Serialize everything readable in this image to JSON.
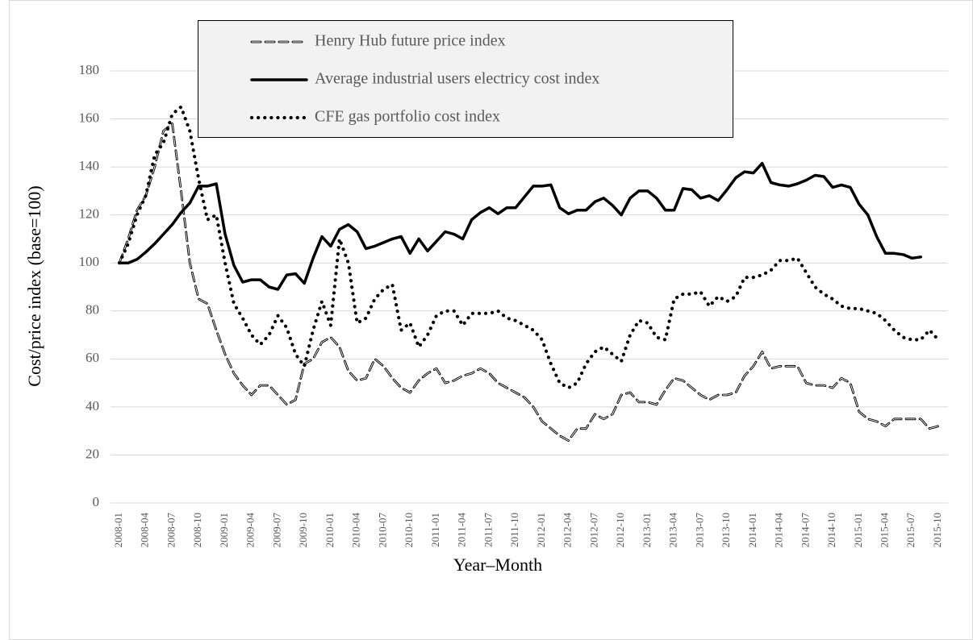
{
  "chart_data": {
    "type": "line",
    "x_label": "Year–Month",
    "y_label": "Cost/price  index (base=100)",
    "categories": [
      "2008-01",
      null,
      null,
      "2008-04",
      null,
      null,
      "2008-07",
      null,
      null,
      "2008-10",
      null,
      null,
      "2009-01",
      null,
      null,
      "2009-04",
      null,
      null,
      "2009-07",
      null,
      null,
      "2009-10",
      null,
      null,
      "2010-01",
      null,
      null,
      "2010-04",
      null,
      null,
      "2010-07",
      null,
      null,
      "2010-10",
      null,
      null,
      "2011-01",
      null,
      null,
      "2011-04",
      null,
      null,
      "2011-07",
      null,
      null,
      "2011-10",
      null,
      null,
      "2012-01",
      null,
      null,
      "2012-04",
      null,
      null,
      "2012-07",
      null,
      null,
      "2012-10",
      null,
      null,
      "2013-01",
      null,
      null,
      "2013-04",
      null,
      null,
      "2013-07",
      null,
      null,
      "2013-10",
      null,
      null,
      "2014-01",
      null,
      null,
      "2014-04",
      null,
      null,
      "2014-07",
      null,
      null,
      "2014-10",
      null,
      null,
      "2015-01",
      null,
      null,
      "2015-04",
      null,
      null,
      "2015-07",
      null,
      null,
      "2015-10"
    ],
    "series": [
      {
        "name": "Henry Hub future price index",
        "color": "#000000",
        "dash": "dashed",
        "values": [
          100,
          110,
          122,
          128,
          140,
          155,
          158,
          130,
          100,
          85,
          83,
          72,
          62,
          54,
          49,
          45,
          49,
          49,
          45,
          41,
          43,
          58,
          60,
          67,
          69,
          65,
          55,
          51,
          52,
          60,
          57,
          52,
          48,
          46,
          51,
          54,
          56,
          50,
          51,
          53,
          54,
          56,
          54,
          50,
          48,
          46,
          44,
          40,
          34,
          31,
          28,
          26,
          31,
          31,
          37,
          35,
          37,
          45,
          46,
          42,
          42,
          41,
          47,
          52,
          51,
          48,
          45,
          43,
          45,
          45,
          46,
          53,
          57,
          63,
          56,
          57,
          57,
          57,
          50,
          49,
          49,
          48,
          52,
          50,
          38,
          35,
          34,
          32,
          35,
          35,
          35,
          35,
          31,
          32
        ]
      },
      {
        "name": "Average industrial users electricy cost  index",
        "color": "#000000",
        "dash": "solid",
        "values": [
          100,
          100,
          101.5,
          104.5,
          108,
          112,
          116,
          121,
          125,
          132,
          132,
          133,
          112,
          99,
          92,
          93,
          93,
          90,
          89,
          95,
          95.5,
          91.5,
          102,
          111,
          107,
          114,
          116,
          113,
          106,
          107,
          108.5,
          110,
          111,
          104,
          110,
          105,
          109,
          113,
          112,
          110,
          118,
          121,
          123,
          120.5,
          123,
          123,
          127.5,
          132,
          132,
          132.5,
          123,
          120.5,
          122,
          122,
          125.5,
          127,
          124,
          120,
          127,
          130,
          130,
          127,
          122,
          122,
          131,
          130.5,
          127,
          128,
          126,
          130.5,
          135.5,
          138,
          137.5,
          141.5,
          133.5,
          132.5,
          132,
          133,
          134.5,
          136.5,
          136,
          131.5,
          132.5,
          131.5,
          124.5,
          120,
          111,
          104,
          104,
          103.5,
          102,
          102.5,
          null,
          null
        ]
      },
      {
        "name": "CFE gas portfolio cost index",
        "color": "#000000",
        "dash": "dotted",
        "values": [
          100,
          108,
          120,
          128,
          145,
          150,
          162,
          165,
          155,
          135,
          118,
          120,
          100,
          83,
          77,
          70,
          66,
          70,
          78,
          73,
          62,
          57,
          72,
          84,
          74,
          110,
          100,
          75,
          77,
          85,
          89,
          91,
          72,
          75,
          65,
          70,
          78,
          80,
          80,
          74,
          79,
          79,
          79,
          80,
          77,
          76,
          74,
          72,
          68,
          58,
          50,
          48,
          50,
          58,
          63,
          65,
          62,
          59,
          70,
          76,
          75,
          69,
          68,
          85,
          87,
          87,
          88,
          82,
          86,
          84,
          86,
          94,
          94,
          95,
          97,
          101,
          101,
          102,
          96,
          90,
          87,
          85,
          82,
          81,
          81,
          80,
          79,
          76,
          72,
          69,
          68,
          68,
          72,
          68
        ]
      }
    ],
    "ylim": [
      0,
      180
    ],
    "yticks": [
      0,
      20,
      40,
      60,
      80,
      100,
      120,
      140,
      160,
      180
    ],
    "grid": true
  }
}
